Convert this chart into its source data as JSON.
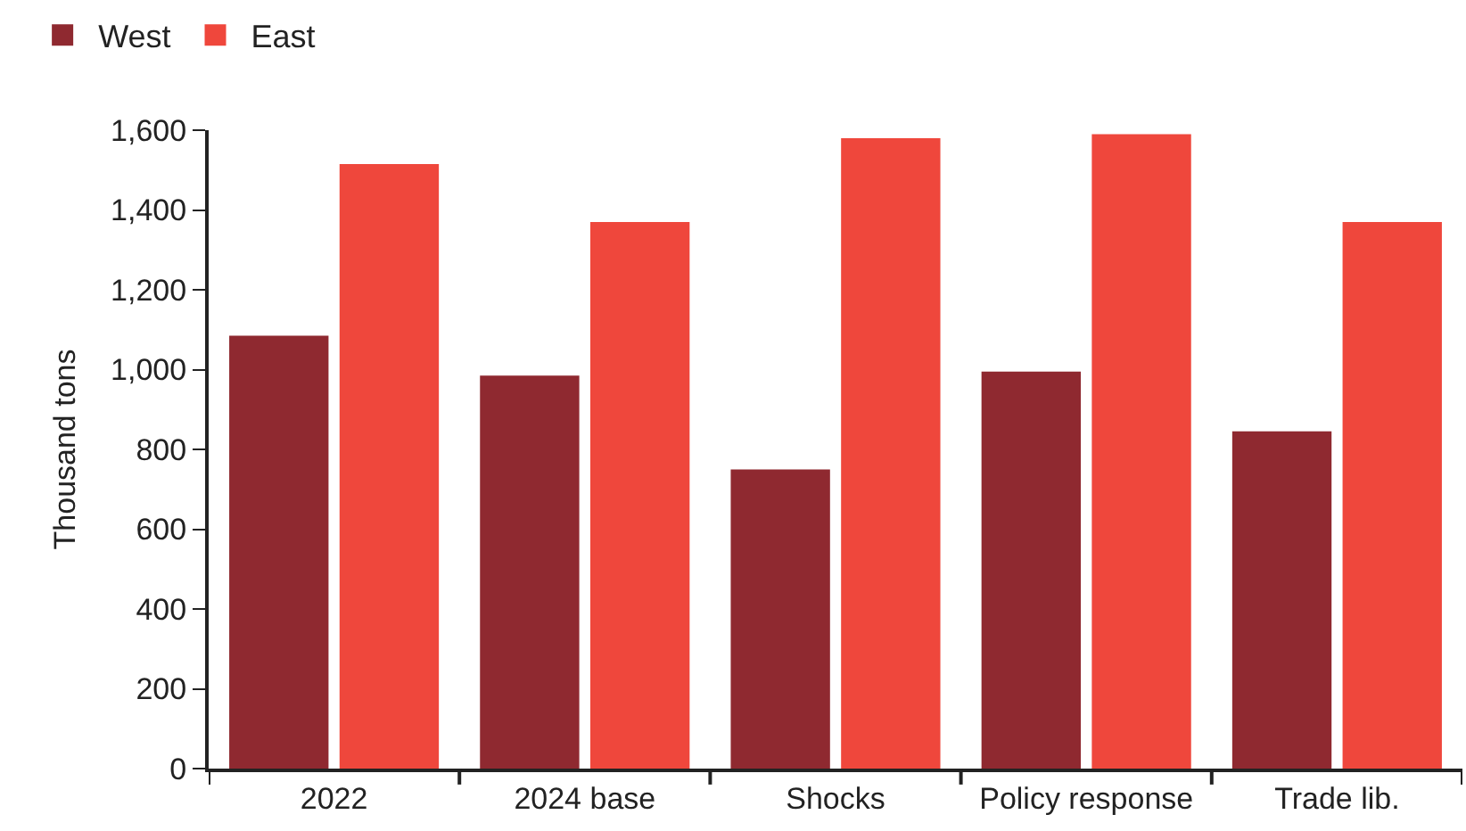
{
  "chart_data": {
    "type": "bar",
    "categories": [
      "2022",
      "2024 base",
      "Shocks",
      "Policy response",
      "Trade lib."
    ],
    "series": [
      {
        "name": "West",
        "color": "#8f2930",
        "values": [
          1085,
          985,
          750,
          995,
          845
        ]
      },
      {
        "name": "East",
        "color": "#ef473c",
        "values": [
          1515,
          1370,
          1580,
          1590,
          1370
        ]
      }
    ],
    "ylabel": "Thousand tons",
    "ylim": [
      0,
      1600
    ],
    "yticks": [
      0,
      {
        "value": 200,
        "label": "200"
      },
      {
        "value": 400,
        "label": "400"
      },
      {
        "value": 600,
        "label": "600"
      },
      {
        "value": 800,
        "label": "800"
      },
      {
        "value": 1000,
        "label": "1,000"
      },
      {
        "value": 1200,
        "label": "1,200"
      },
      {
        "value": 1400,
        "label": "1,400"
      },
      {
        "value": 1600,
        "label": "1,600"
      }
    ],
    "legend": "top left"
  }
}
